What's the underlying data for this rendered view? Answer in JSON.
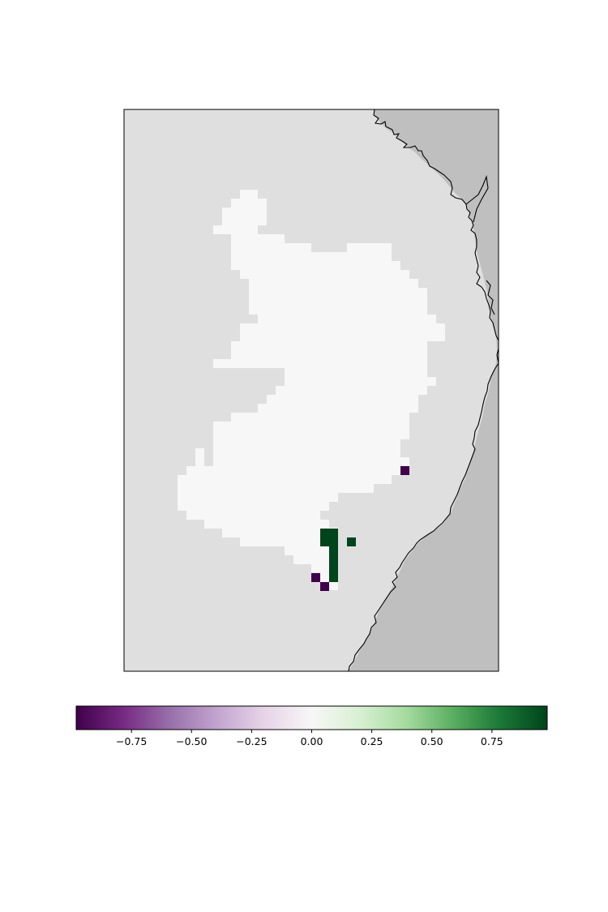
{
  "map": {
    "background_color": "#dfdfdf",
    "land_color": "#bfbfbf",
    "no_change_color": "#f7f7f7",
    "coastline_color": "#000000"
  },
  "chart_data": {
    "type": "heatmap",
    "colormap": "PRGn",
    "cells": [
      {
        "value": -1,
        "note": "purple"
      },
      {
        "value": 1,
        "note": "green"
      }
    ],
    "colorbar": {
      "vmin": -0.98,
      "vmax": 0.98,
      "orientation": "horizontal",
      "placement": "bottom",
      "ticks": [
        -0.75,
        -0.5,
        -0.25,
        0.0,
        0.25,
        0.5,
        0.75
      ],
      "tick_labels": [
        "−0.75",
        "−0.50",
        "−0.25",
        "0.00",
        "0.25",
        "0.50",
        "0.75"
      ],
      "stops": [
        "#40004b",
        "#762a83",
        "#9970ab",
        "#c2a5cf",
        "#e7d4e8",
        "#f7f7f7",
        "#d9f0d3",
        "#a6dba0",
        "#5aae61",
        "#1b7837",
        "#00441b"
      ]
    }
  }
}
